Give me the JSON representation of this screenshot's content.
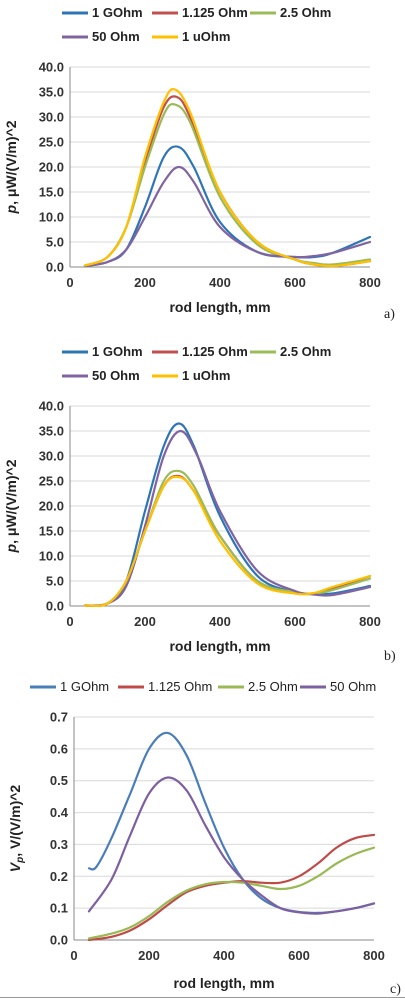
{
  "chart_data": [
    {
      "type": "line",
      "panel_label": "a)",
      "xlabel": "rod length, mm",
      "ylabel_italic": "p",
      "ylabel_rest": ",  μW/(V/m)^2",
      "xlim": [
        0,
        800
      ],
      "ylim": [
        0,
        40
      ],
      "xticks": [
        "0",
        "200",
        "400",
        "600",
        "800"
      ],
      "yticks": [
        "0.0",
        "5.0",
        "10.0",
        "15.0",
        "20.0",
        "25.0",
        "30.0",
        "35.0",
        "40.0"
      ],
      "grid": true,
      "legend": "top",
      "series": [
        {
          "name": "1 GOhm",
          "color": "#2e75b6",
          "x": [
            40,
            100,
            150,
            200,
            250,
            290,
            330,
            400,
            500,
            600,
            650,
            700,
            800
          ],
          "y": [
            0.2,
            1.0,
            3.5,
            12,
            22,
            24,
            20,
            9,
            3,
            2,
            2,
            2.8,
            6
          ]
        },
        {
          "name": "1.125 Ohm",
          "color": "#c0504d",
          "x": [
            40,
            100,
            150,
            200,
            250,
            285,
            320,
            400,
            500,
            600,
            650,
            700,
            740,
            800
          ],
          "y": [
            0.3,
            2,
            8,
            21,
            32,
            34,
            30,
            15,
            5,
            1.5,
            0.5,
            0.3,
            0.5,
            1.2
          ]
        },
        {
          "name": "2.5 Ohm",
          "color": "#9bbb59",
          "x": [
            40,
            100,
            150,
            200,
            250,
            280,
            320,
            400,
            500,
            600,
            650,
            700,
            800
          ],
          "y": [
            0.3,
            2,
            8,
            20,
            30.5,
            32.5,
            29,
            14,
            4.5,
            1.5,
            0.8,
            0.5,
            1.5
          ]
        },
        {
          "name": "50 Ohm",
          "color": "#8064a2",
          "x": [
            40,
            100,
            150,
            200,
            250,
            290,
            330,
            400,
            500,
            600,
            650,
            700,
            800
          ],
          "y": [
            0.2,
            1.0,
            3.5,
            10,
            17,
            20,
            17,
            8,
            3,
            2,
            2.2,
            2.8,
            5
          ]
        },
        {
          "name": "1 uOhm",
          "color": "#ffc000",
          "x": [
            40,
            100,
            150,
            200,
            250,
            280,
            320,
            400,
            500,
            600,
            650,
            700,
            740,
            800
          ],
          "y": [
            0.3,
            2,
            8,
            22,
            33,
            35.5,
            31,
            15,
            5,
            1.5,
            0.5,
            0.2,
            0.5,
            1.2
          ]
        }
      ]
    },
    {
      "type": "line",
      "panel_label": "b)",
      "xlabel": "rod length, mm",
      "ylabel_italic": "p",
      "ylabel_rest": ",  μW/(V/m)^2",
      "xlim": [
        0,
        800
      ],
      "ylim": [
        0,
        40
      ],
      "xticks": [
        "0",
        "200",
        "400",
        "600",
        "800"
      ],
      "yticks": [
        "0.0",
        "5.0",
        "10.0",
        "15.0",
        "20.0",
        "25.0",
        "30.0",
        "35.0",
        "40.0"
      ],
      "grid": true,
      "legend": "top",
      "series": [
        {
          "name": "1 GOhm",
          "color": "#2e75b6",
          "x": [
            40,
            100,
            150,
            200,
            250,
            290,
            330,
            400,
            500,
            600,
            650,
            700,
            800
          ],
          "y": [
            0.1,
            0.5,
            5,
            19,
            32,
            36.5,
            32,
            18,
            6,
            2.8,
            2.5,
            2.5,
            4
          ]
        },
        {
          "name": "1.125 Ohm",
          "color": "#c0504d",
          "x": [
            40,
            100,
            150,
            200,
            250,
            290,
            330,
            400,
            500,
            600,
            650,
            700,
            800
          ],
          "y": [
            0.1,
            0.5,
            5,
            15,
            24,
            26,
            23,
            14,
            5,
            2.8,
            2.5,
            3.5,
            6
          ]
        },
        {
          "name": "2.5 Ohm",
          "color": "#9bbb59",
          "x": [
            40,
            100,
            150,
            200,
            250,
            290,
            330,
            400,
            500,
            600,
            650,
            700,
            800
          ],
          "y": [
            0.1,
            0.5,
            5,
            15,
            25,
            27,
            24,
            14,
            5,
            2.8,
            2.5,
            3.2,
            5.5
          ]
        },
        {
          "name": "50 Ohm",
          "color": "#8064a2",
          "x": [
            40,
            100,
            150,
            200,
            250,
            295,
            340,
            400,
            500,
            600,
            650,
            700,
            800
          ],
          "y": [
            0.1,
            0.5,
            4,
            16,
            30,
            35,
            30,
            19,
            7,
            3,
            2.3,
            2.2,
            3.8
          ]
        },
        {
          "name": "1 uOhm",
          "color": "#ffc000",
          "x": [
            40,
            100,
            150,
            200,
            250,
            290,
            330,
            400,
            500,
            600,
            650,
            700,
            800
          ],
          "y": [
            0.1,
            0.5,
            5,
            15,
            24,
            25.8,
            23,
            13,
            4.5,
            2.5,
            2.6,
            3.8,
            6
          ]
        }
      ]
    },
    {
      "type": "line",
      "panel_label": "c)",
      "xlabel": "rod length, mm",
      "ylabel_italic": "V",
      "ylabel_sub": "p",
      "ylabel_rest": ",  V/(V/m)^2",
      "xlim": [
        0,
        800
      ],
      "ylim": [
        0,
        0.7
      ],
      "xticks": [
        "0",
        "200",
        "400",
        "600",
        "800"
      ],
      "yticks": [
        "0.0",
        "0.1",
        "0.2",
        "0.3",
        "0.4",
        "0.5",
        "0.6",
        "0.7"
      ],
      "grid": true,
      "legend": "top",
      "series": [
        {
          "name": "1 GOhm",
          "color": "#4a7ebb",
          "x": [
            40,
            60,
            100,
            150,
            200,
            250,
            300,
            350,
            400,
            450,
            500,
            550,
            600,
            650,
            700,
            750,
            800
          ],
          "y": [
            0.225,
            0.23,
            0.32,
            0.46,
            0.6,
            0.65,
            0.58,
            0.43,
            0.29,
            0.19,
            0.13,
            0.1,
            0.088,
            0.085,
            0.09,
            0.1,
            0.115
          ]
        },
        {
          "name": "1.125 Ohm",
          "color": "#be4b48",
          "x": [
            40,
            100,
            150,
            200,
            250,
            300,
            350,
            400,
            450,
            500,
            550,
            600,
            650,
            700,
            750,
            800
          ],
          "y": [
            0.0,
            0.01,
            0.03,
            0.065,
            0.11,
            0.15,
            0.17,
            0.18,
            0.185,
            0.18,
            0.18,
            0.2,
            0.24,
            0.29,
            0.32,
            0.33
          ]
        },
        {
          "name": "2.5 Ohm",
          "color": "#98b954",
          "x": [
            40,
            100,
            150,
            200,
            250,
            300,
            350,
            400,
            450,
            500,
            550,
            600,
            650,
            700,
            750,
            800
          ],
          "y": [
            0.005,
            0.02,
            0.04,
            0.075,
            0.12,
            0.155,
            0.175,
            0.182,
            0.18,
            0.17,
            0.16,
            0.17,
            0.2,
            0.24,
            0.27,
            0.29
          ]
        },
        {
          "name": "50 Ohm",
          "color": "#7d60a0",
          "x": [
            40,
            100,
            150,
            200,
            250,
            300,
            350,
            400,
            450,
            500,
            550,
            600,
            650,
            700,
            750,
            800
          ],
          "y": [
            0.09,
            0.19,
            0.33,
            0.46,
            0.51,
            0.47,
            0.36,
            0.26,
            0.19,
            0.14,
            0.1,
            0.087,
            0.083,
            0.09,
            0.1,
            0.115
          ]
        }
      ]
    }
  ]
}
